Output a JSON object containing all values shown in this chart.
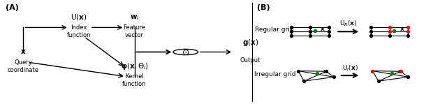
{
  "figsize": [
    6.4,
    1.49
  ],
  "dpi": 100,
  "bg_color": "#ffffff",
  "fs_label": 6.5,
  "fs_math": 7.5,
  "panel_A_label": "(A)",
  "panel_B_label": "(B)",
  "regular_grid_label": "Regular grid",
  "irregular_grid_label": "Irregular grid",
  "ur_label": "U$_R$($\\mathbf{x}$)",
  "ui_label": "U$_I$($\\mathbf{x}$)"
}
